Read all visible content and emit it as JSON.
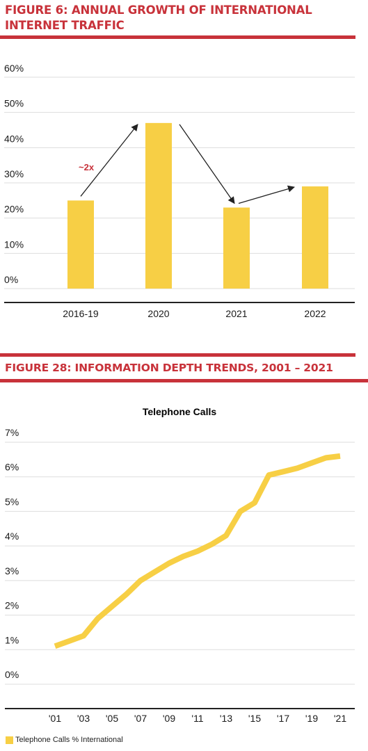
{
  "figure1": {
    "title": "FIGURE 6: ANNUAL GROWTH OF INTERNATIONAL INTERNET TRAFFIC",
    "annotation": "~2x"
  },
  "figure2": {
    "title": "FIGURE 28: INFORMATION DEPTH TRENDS, 2001 – 2021",
    "legend": "Telephone Calls % International"
  },
  "colors": {
    "accent_red": "#c8323a",
    "bar_yellow": "#f7cf45",
    "grid": "#dddddd",
    "axis": "#222222"
  },
  "chart_data": [
    {
      "type": "bar",
      "categories": [
        "2016-19",
        "2020",
        "2021",
        "2022"
      ],
      "values": [
        25,
        47,
        23,
        29
      ],
      "ylim": [
        0,
        60
      ],
      "yticks": [
        0,
        10,
        20,
        30,
        40,
        50,
        60
      ],
      "ytick_labels": [
        "0%",
        "10%",
        "20%",
        "30%",
        "40%",
        "50%",
        "60%"
      ],
      "grid": true
    },
    {
      "type": "line",
      "title": "Telephone Calls",
      "series": [
        {
          "name": "Telephone Calls % International",
          "x": [
            2001,
            2002,
            2003,
            2004,
            2005,
            2006,
            2007,
            2008,
            2009,
            2010,
            2011,
            2012,
            2013,
            2014,
            2015,
            2016,
            2017,
            2018,
            2019,
            2020,
            2021
          ],
          "values": [
            1.1,
            1.25,
            1.4,
            1.9,
            2.25,
            2.6,
            3.0,
            3.25,
            3.5,
            3.7,
            3.85,
            4.05,
            4.3,
            5.0,
            5.25,
            6.05,
            6.15,
            6.25,
            6.4,
            6.55,
            6.6
          ]
        }
      ],
      "xticks": [
        2001,
        2003,
        2005,
        2007,
        2009,
        2011,
        2013,
        2015,
        2017,
        2019,
        2021
      ],
      "xtick_labels": [
        "'01",
        "'03",
        "'05",
        "'07",
        "'09",
        "'11",
        "'13",
        "'15",
        "'17",
        "'19",
        "'21"
      ],
      "ylim": [
        0,
        7
      ],
      "yticks": [
        0,
        1,
        2,
        3,
        4,
        5,
        6,
        7
      ],
      "ytick_labels": [
        "0%",
        "1%",
        "2%",
        "3%",
        "4%",
        "5%",
        "6%",
        "7%"
      ],
      "grid": true,
      "legend": "bottom-left"
    }
  ]
}
